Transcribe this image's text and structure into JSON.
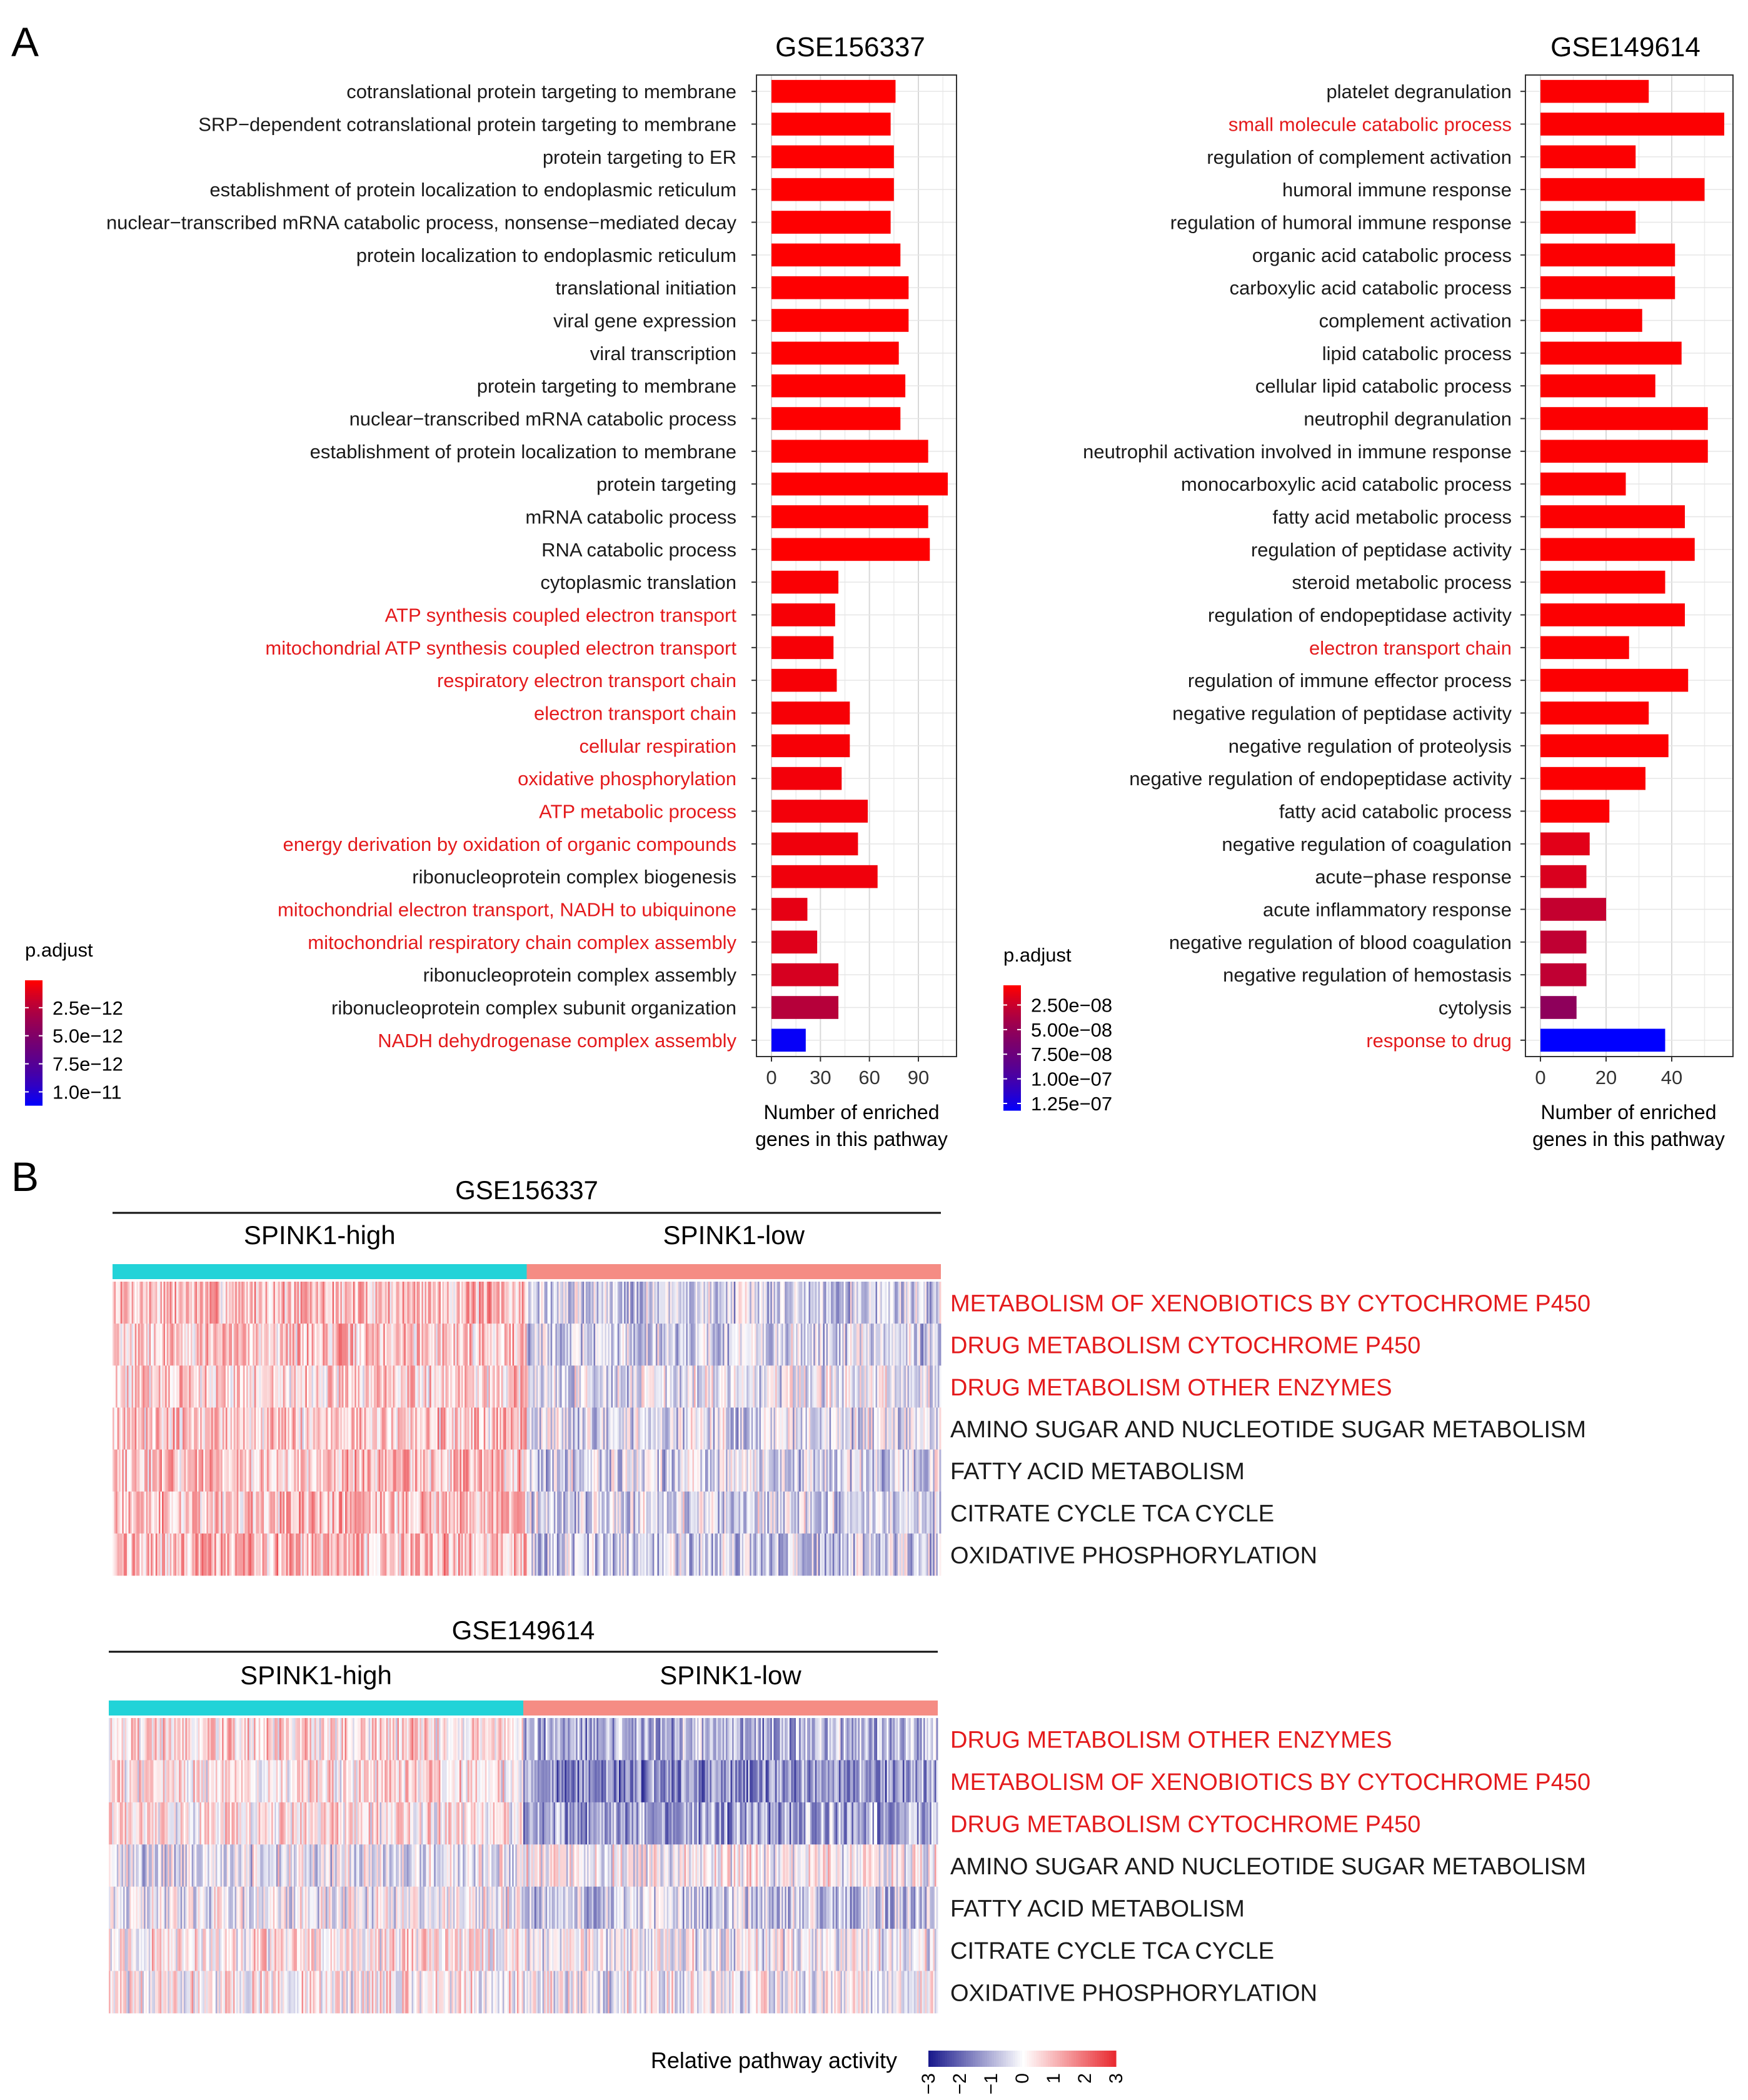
{
  "colors": {
    "highlight_text": "#e41a1c",
    "normal_text": "#1a1a1a",
    "padj_low": "#ff0000",
    "padj_high": "#0000ff",
    "group_high": "#22d3d8",
    "group_low": "#f58c84",
    "heat_low": "#1a1a8c",
    "heat_mid": "#ffffff",
    "heat_high": "#e8262c"
  },
  "panels": {
    "a_label": "A",
    "b_label": "B"
  },
  "chart_data": [
    {
      "type": "bar",
      "orientation": "horizontal",
      "title": "GSE156337",
      "xlabel_lines": [
        "Number of enriched",
        "genes in this pathway"
      ],
      "xlim": [
        0,
        108
      ],
      "xticks": [
        "0",
        "30",
        "60",
        "90"
      ],
      "xtick_values": [
        0,
        30,
        60,
        90
      ],
      "grid": true,
      "legend": {
        "title": "p.adjust",
        "labels": [
          "2.5e−12",
          "5.0e−12",
          "7.5e−12",
          "1.0e−11"
        ],
        "label_values": [
          2.5e-12,
          5e-12,
          7.5e-12,
          1e-11
        ],
        "range": [
          6e-14,
          1.12e-11
        ]
      },
      "categories": [
        "cotranslational protein targeting to membrane",
        "SRP−dependent cotranslational protein targeting to membrane",
        "protein targeting to ER",
        "establishment of protein localization to endoplasmic reticulum",
        "nuclear−transcribed mRNA catabolic process, nonsense−mediated decay",
        "protein localization to endoplasmic reticulum",
        "translational initiation",
        "viral gene expression",
        "viral transcription",
        "protein targeting to membrane",
        "nuclear−transcribed mRNA catabolic process",
        "establishment of protein localization to membrane",
        "protein targeting",
        "mRNA catabolic process",
        "RNA catabolic process",
        "cytoplasmic translation",
        "ATP synthesis coupled electron transport",
        "mitochondrial ATP synthesis coupled electron transport",
        "respiratory electron transport chain",
        "electron transport chain",
        "cellular respiration",
        "oxidative phosphorylation",
        "ATP metabolic process",
        "energy derivation by oxidation of organic compounds",
        "ribonucleoprotein complex biogenesis",
        "mitochondrial electron transport, NADH to ubiquinone",
        "mitochondrial respiratory chain complex assembly",
        "ribonucleoprotein complex assembly",
        "ribonucleoprotein complex subunit organization",
        "NADH dehydrogenase complex assembly"
      ],
      "values": [
        76,
        73,
        75,
        75,
        73,
        79,
        84,
        84,
        78,
        82,
        79,
        96,
        108,
        96,
        97,
        41,
        39,
        38,
        40,
        48,
        48,
        43,
        59,
        53,
        65,
        22,
        28,
        41,
        41,
        21
      ],
      "p_adjust": [
        1e-13,
        1e-13,
        1e-13,
        1e-13,
        1e-13,
        1e-13,
        1e-13,
        1e-13,
        1e-13,
        1e-13,
        1e-13,
        1e-13,
        1e-13,
        1e-13,
        1e-13,
        2e-13,
        3e-13,
        3e-13,
        3e-13,
        3e-13,
        3e-13,
        4e-13,
        4e-13,
        5e-13,
        5e-13,
        8e-13,
        1e-12,
        1.3e-12,
        2.4e-12,
        1.1e-11
      ],
      "highlighted": [
        false,
        false,
        false,
        false,
        false,
        false,
        false,
        false,
        false,
        false,
        false,
        false,
        false,
        false,
        false,
        false,
        true,
        true,
        true,
        true,
        true,
        true,
        true,
        true,
        false,
        true,
        true,
        false,
        false,
        true
      ]
    },
    {
      "type": "bar",
      "orientation": "horizontal",
      "title": "GSE149614",
      "xlabel_lines": [
        "Number of enriched",
        "genes in this pathway"
      ],
      "xlim": [
        0,
        56
      ],
      "xticks": [
        "0",
        "20",
        "40"
      ],
      "xtick_values": [
        0,
        20,
        40
      ],
      "grid": true,
      "legend": {
        "title": "p.adjust",
        "labels": [
          "2.50e−08",
          "5.00e−08",
          "7.50e−08",
          "1.00e−07",
          "1.25e−07"
        ],
        "label_values": [
          2.5e-08,
          5e-08,
          7.5e-08,
          1e-07,
          1.25e-07
        ],
        "range": [
          5e-09,
          1.32e-07
        ]
      },
      "categories": [
        "platelet degranulation",
        "small molecule catabolic process",
        "regulation of complement activation",
        "humoral immune response",
        "regulation of humoral immune response",
        "organic acid catabolic process",
        "carboxylic acid catabolic process",
        "complement activation",
        "lipid catabolic process",
        "cellular lipid catabolic process",
        "neutrophil degranulation",
        "neutrophil activation involved in immune response",
        "monocarboxylic acid catabolic process",
        "fatty acid metabolic process",
        "regulation of peptidase activity",
        "steroid metabolic process",
        "regulation of endopeptidase activity",
        "electron transport chain",
        "regulation of immune effector process",
        "negative regulation of peptidase activity",
        "negative regulation of proteolysis",
        "negative regulation of endopeptidase activity",
        "fatty acid catabolic process",
        "negative regulation of coagulation",
        "acute−phase response",
        "acute inflammatory response",
        "negative regulation of blood coagulation",
        "negative regulation of hemostasis",
        "cytolysis",
        "response to drug"
      ],
      "values": [
        33,
        56,
        29,
        50,
        29,
        41,
        41,
        31,
        43,
        35,
        51,
        51,
        26,
        44,
        47,
        38,
        44,
        27,
        45,
        33,
        39,
        32,
        21,
        15,
        14,
        20,
        14,
        14,
        11,
        38
      ],
      "p_adjust": [
        6e-09,
        6e-09,
        6e-09,
        6e-09,
        6e-09,
        6e-09,
        6e-09,
        6e-09,
        6e-09,
        6e-09,
        6e-09,
        6e-09,
        6e-09,
        6e-09,
        6e-09,
        6e-09,
        6e-09,
        6e-09,
        6e-09,
        6e-09,
        6e-09,
        6e-09,
        6e-09,
        1.5e-08,
        1.8e-08,
        2.6e-08,
        2.8e-08,
        2.8e-08,
        5.2e-08,
        1.32e-07
      ],
      "highlighted": [
        false,
        true,
        false,
        false,
        false,
        false,
        false,
        false,
        false,
        false,
        false,
        false,
        false,
        false,
        false,
        false,
        false,
        true,
        false,
        false,
        false,
        false,
        false,
        false,
        false,
        false,
        false,
        false,
        false,
        true
      ]
    },
    {
      "type": "heatmap",
      "title": "GSE156337",
      "groups": [
        "SPINK1-high",
        "SPINK1-low"
      ],
      "rows": [
        "METABOLISM OF XENOBIOTICS BY CYTOCHROME P450",
        "DRUG METABOLISM CYTOCHROME P450",
        "DRUG METABOLISM OTHER ENZYMES",
        "AMINO SUGAR AND NUCLEOTIDE SUGAR METABOLISM",
        "FATTY ACID METABOLISM",
        "CITRATE CYCLE TCA CYCLE",
        "OXIDATIVE PHOSPHORYLATION"
      ],
      "highlighted": [
        true,
        true,
        true,
        false,
        false,
        false,
        false
      ],
      "mean_activity": {
        "SPINK1-high": [
          0.9,
          0.8,
          0.6,
          0.7,
          0.8,
          0.9,
          0.9
        ],
        "SPINK1-low": [
          -0.5,
          -0.5,
          -0.3,
          -0.4,
          -0.5,
          -0.5,
          -0.6
        ]
      },
      "scale_limits": [
        -3,
        3
      ]
    },
    {
      "type": "heatmap",
      "title": "GSE149614",
      "groups": [
        "SPINK1-high",
        "SPINK1-low"
      ],
      "rows": [
        "DRUG METABOLISM OTHER ENZYMES",
        "METABOLISM OF XENOBIOTICS BY CYTOCHROME P450",
        "DRUG METABOLISM CYTOCHROME P450",
        "AMINO SUGAR AND NUCLEOTIDE SUGAR METABOLISM",
        "FATTY ACID METABOLISM",
        "CITRATE CYCLE TCA CYCLE",
        "OXIDATIVE PHOSPHORYLATION"
      ],
      "highlighted": [
        true,
        true,
        true,
        false,
        false,
        false,
        false
      ],
      "mean_activity": {
        "SPINK1-high": [
          0.5,
          0.3,
          0.3,
          -0.2,
          -0.1,
          0.3,
          0.2
        ],
        "SPINK1-low": [
          -1.0,
          -1.4,
          -1.2,
          0.1,
          -0.6,
          -0.1,
          -0.1
        ]
      },
      "scale_limits": [
        -3,
        3
      ]
    }
  ],
  "heat_legend": {
    "title": "Relative pathway activity",
    "ticks": [
      "−3",
      "−2",
      "−1",
      "0",
      "1",
      "2",
      "3"
    ],
    "tick_values": [
      -3,
      -2,
      -1,
      0,
      1,
      2,
      3
    ]
  }
}
